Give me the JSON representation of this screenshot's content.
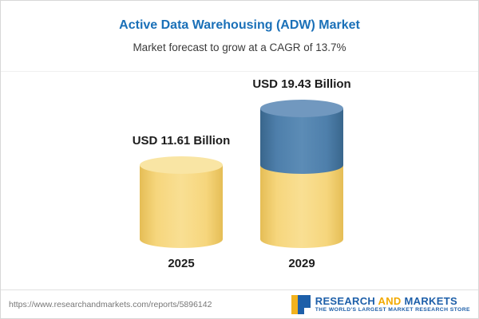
{
  "header": {
    "title": "Active Data Warehousing (ADW) Market",
    "subtitle": "Market forecast to grow at a CAGR of 13.7%"
  },
  "chart_data": {
    "type": "bar",
    "title": "Active Data Warehousing (ADW) Market",
    "subtitle": "Market forecast to grow at a CAGR of 13.7%",
    "cagr_percent": 13.7,
    "unit": "USD Billion",
    "categories": [
      "2025",
      "2029"
    ],
    "values": [
      11.61,
      19.43
    ],
    "value_labels": [
      "USD 11.61 Billion",
      "USD 19.43 Billion"
    ],
    "ylim": [
      0,
      20
    ],
    "legend": "none",
    "grid": "off",
    "colors": {
      "base_segment": "#F5D476",
      "growth_segment": "#4E7FAB"
    }
  },
  "footer": {
    "url": "https://www.researchandmarkets.com/reports/5896142",
    "logo_research": "RESEARCH",
    "logo_and": "AND",
    "logo_markets": "MARKETS",
    "tagline": "THE WORLD'S LARGEST MARKET RESEARCH STORE"
  }
}
